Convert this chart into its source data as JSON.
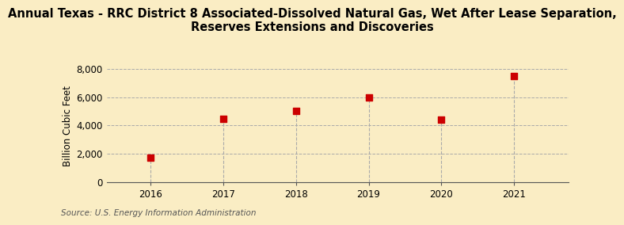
{
  "title": "Annual Texas - RRC District 8 Associated-Dissolved Natural Gas, Wet After Lease Separation,\nReserves Extensions and Discoveries",
  "ylabel": "Billion Cubic Feet",
  "source": "Source: U.S. Energy Information Administration",
  "x": [
    2016,
    2017,
    2018,
    2019,
    2020,
    2021
  ],
  "y": [
    1750,
    4500,
    5050,
    6000,
    4400,
    7500
  ],
  "ylim": [
    0,
    8000
  ],
  "yticks": [
    0,
    2000,
    4000,
    6000,
    8000
  ],
  "marker_color": "#cc0000",
  "marker_size": 36,
  "bg_color": "#faedc4",
  "grid_color": "#aaaaaa",
  "vline_color": "#aaaaaa",
  "title_fontsize": 10.5,
  "label_fontsize": 8.5,
  "tick_fontsize": 8.5,
  "source_fontsize": 7.5
}
